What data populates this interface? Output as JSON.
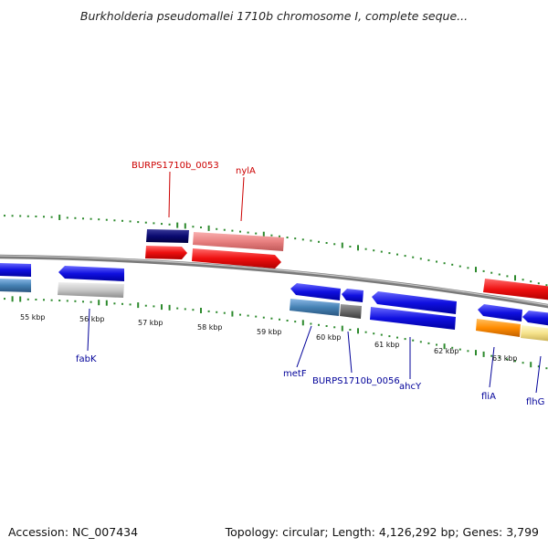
{
  "title": "Burkholderia pseudomallei 1710b chromosome I, complete seque...",
  "accession": "Accession: NC_007434",
  "summary": "Topology: circular; Length: 4,126,292 bp; Genes: 3,799",
  "axis_ticks": [
    "55 kbp",
    "56 kbp",
    "57 kbp",
    "58 kbp",
    "59 kbp",
    "60 kbp",
    "61 kbp",
    "62 kbp",
    "63 kbp"
  ],
  "gene_labels": {
    "burps_0053": "BURPS1710b_0053",
    "nylA": "nylA",
    "fabK": "fabK",
    "metF": "metF",
    "burps_0056": "BURPS1710b_0056",
    "ahcY": "ahcY",
    "fliA": "fliA",
    "flhG": "flhG"
  },
  "colors": {
    "top_label": "#cc0000",
    "bottom_label": "#000099",
    "backbone": "#888888",
    "gc_ticks": "#2d8a2d",
    "forward_gene": "#e01010",
    "reverse_gene": "#1a1aee"
  }
}
